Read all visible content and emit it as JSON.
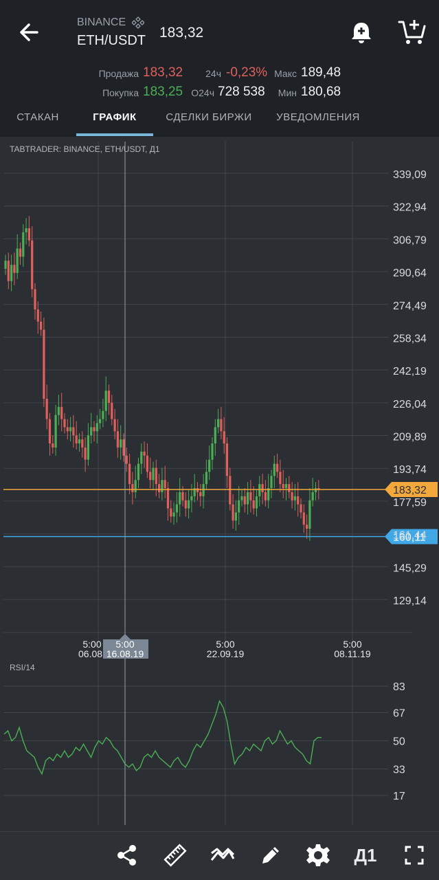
{
  "header": {
    "exchange": "BINANCE",
    "pair": "ETH/USDT",
    "last_price": "183,32",
    "sell_label": "Продажа",
    "sell_value": "183,32",
    "buy_label": "Покупка",
    "buy_value": "183,25",
    "change_label": "24ч",
    "change_value": "-0,23%",
    "volume_label": "О24ч",
    "volume_value": "728 538",
    "max_label": "Макс",
    "max_value": "189,48",
    "min_label": "Мин",
    "min_value": "180,68"
  },
  "tabs": [
    {
      "label": "СТАКАН",
      "active": false
    },
    {
      "label": "ГРАФИК",
      "active": true
    },
    {
      "label": "СДЕЛКИ БИРЖИ",
      "active": false
    },
    {
      "label": "УВЕДОМЛЕНИЯ",
      "active": false
    }
  ],
  "chart": {
    "title": "TABTRADER: BINANCE, ETH/USDT, Д1",
    "rsi_title": "RSI/14",
    "x_ticks": [
      {
        "time": "5:00",
        "date": "06.08"
      },
      {
        "time": "5:00",
        "date": "22.09.19"
      },
      {
        "time": "5:00",
        "date": "08.11.19"
      }
    ],
    "crosshair_label": {
      "time": "5:00",
      "date": "16.08.19"
    },
    "current_price_tag": "183,32",
    "alert_price_tag": "160,11"
  },
  "chart_data": [
    {
      "type": "candlestick",
      "title": "TABTRADER: BINANCE, ETH/USDT, Д1",
      "y_ticks": [
        "339,09",
        "322,94",
        "306,79",
        "290,64",
        "274,49",
        "258,34",
        "242,19",
        "226,04",
        "209,89",
        "193,74",
        "177,59",
        "161,44",
        "145,29",
        "129,14"
      ],
      "ylim": [
        119.5,
        349
      ],
      "x_tick_labels": [
        "06.08",
        "16.08.19",
        "22.09.19",
        "08.11.19"
      ],
      "horizontal_lines": [
        {
          "value": 183.32,
          "color": "#f2a83a",
          "label": "183,32"
        },
        {
          "value": 160.11,
          "color": "#41a8e6",
          "label": "160,11"
        }
      ],
      "candles_close_approx": [
        296,
        286,
        294,
        290,
        302,
        298,
        310,
        312,
        306,
        282,
        272,
        266,
        262,
        228,
        218,
        206,
        204,
        220,
        224,
        218,
        214,
        212,
        214,
        210,
        206,
        208,
        204,
        198,
        210,
        214,
        212,
        216,
        218,
        222,
        232,
        226,
        218,
        212,
        204,
        208,
        200,
        196,
        186,
        182,
        188,
        196,
        202,
        200,
        192,
        188,
        194,
        186,
        182,
        188,
        184,
        174,
        170,
        172,
        176,
        182,
        178,
        174,
        178,
        180,
        184,
        182,
        180,
        186,
        192,
        198,
        206,
        214,
        218,
        212,
        206,
        190,
        176,
        168,
        172,
        178,
        180,
        176,
        182,
        178,
        174,
        180,
        186,
        182,
        178,
        184,
        190,
        196,
        192,
        186,
        184,
        186,
        182,
        178,
        180,
        176,
        172,
        166,
        164,
        178,
        182,
        184,
        183.32
      ]
    },
    {
      "type": "line",
      "title": "RSI/14",
      "y_ticks": [
        "83",
        "67",
        "50",
        "33",
        "17"
      ],
      "ylim": [
        0,
        100
      ],
      "values_approx": [
        54,
        56,
        50,
        52,
        58,
        50,
        44,
        42,
        40,
        34,
        30,
        38,
        40,
        38,
        42,
        40,
        44,
        40,
        42,
        46,
        44,
        48,
        44,
        40,
        46,
        50,
        48,
        52,
        50,
        46,
        44,
        40,
        36,
        34,
        36,
        32,
        34,
        40,
        42,
        40,
        44,
        40,
        38,
        36,
        34,
        38,
        40,
        36,
        34,
        38,
        44,
        48,
        46,
        50,
        54,
        60,
        66,
        74,
        70,
        62,
        48,
        36,
        40,
        42,
        46,
        44,
        48,
        46,
        44,
        50,
        52,
        48,
        50,
        56,
        52,
        48,
        50,
        46,
        44,
        42,
        38,
        36,
        50,
        52,
        52
      ]
    }
  ],
  "toolbar": {
    "timeframe": "Д1",
    "icons": [
      "share-icon",
      "ruler-icon",
      "indicators-icon",
      "pencil-icon",
      "gear-icon",
      "fullscreen-icon"
    ]
  },
  "colors": {
    "up": "#4cae55",
    "down": "#e0605c",
    "rsi_line": "#4cae55",
    "background": "#2b2e33",
    "header": "#1e2126",
    "accent_tab": "#79b6d8"
  }
}
